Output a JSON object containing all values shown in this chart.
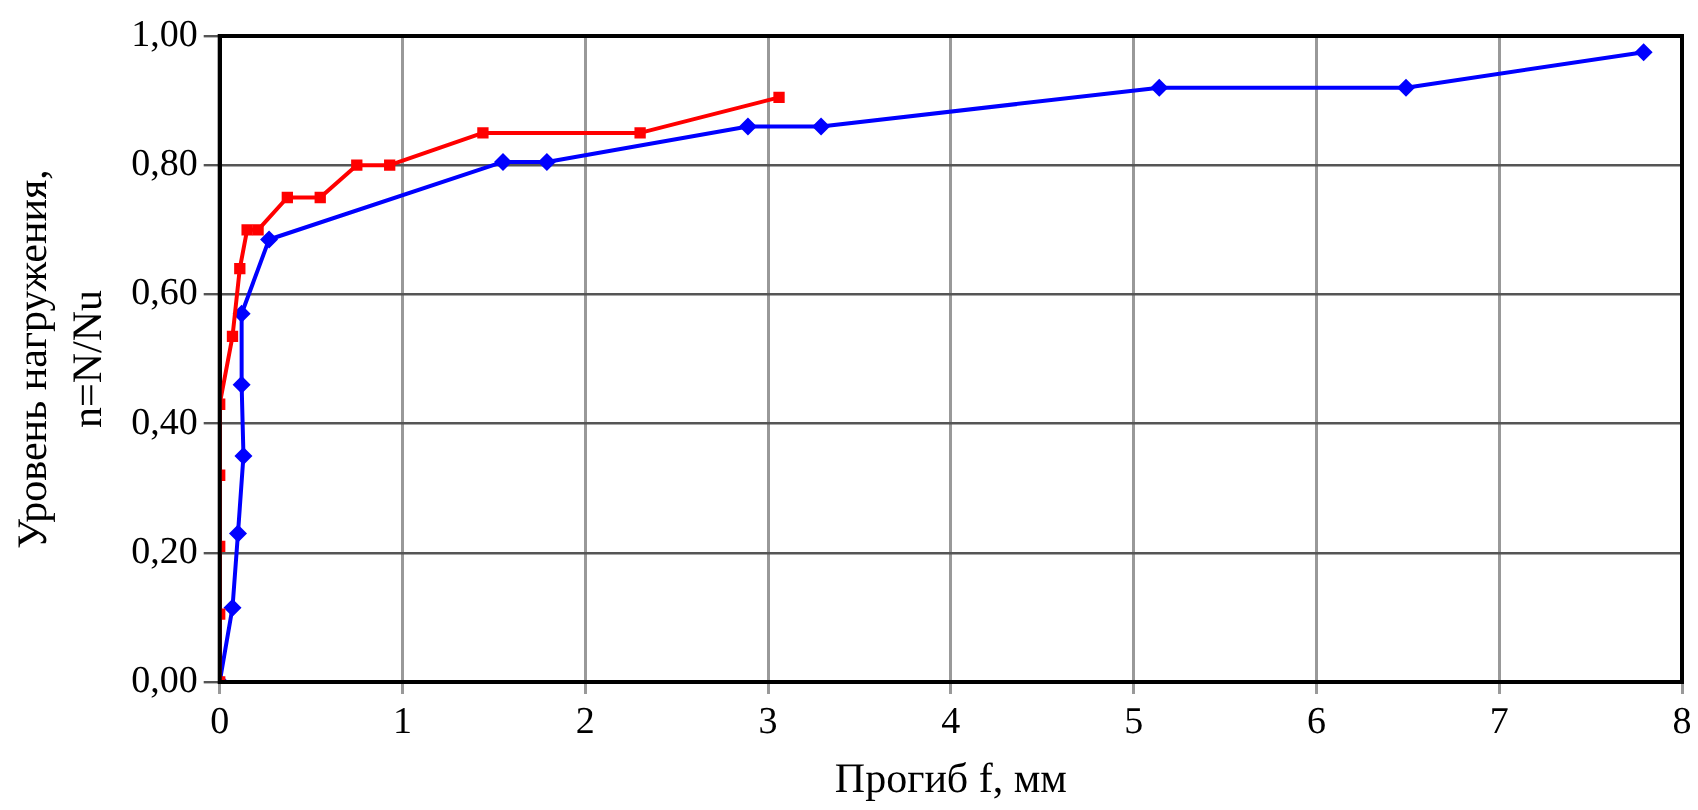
{
  "chart_data": {
    "type": "line",
    "xlabel": "Прогиб f, мм",
    "ylabel": "Уровень нагружения,\nn=N/Nu",
    "xlim": [
      0,
      8
    ],
    "xticks": [
      0,
      1,
      2,
      3,
      4,
      5,
      6,
      7,
      8
    ],
    "ylim": [
      0,
      1
    ],
    "yticks": [
      {
        "value": 0,
        "label": "0,00"
      },
      {
        "value": 0.2,
        "label": "0,20"
      },
      {
        "value": 0.4,
        "label": "0,40"
      },
      {
        "value": 0.6,
        "label": "0,60"
      },
      {
        "value": 0.8,
        "label": "0,80"
      },
      {
        "value": 1,
        "label": "1,00"
      }
    ],
    "grid": true,
    "legend": false,
    "line_style": "solid",
    "series": [
      {
        "color": "#ff0000",
        "marker": "square",
        "x": [
          0,
          0,
          0,
          0,
          0,
          0.07,
          0.11,
          0.15,
          0.21,
          0.37,
          0.55,
          0.75,
          0.93,
          1.44,
          2.3,
          3.06
        ],
        "values": [
          0,
          0.105,
          0.21,
          0.32,
          0.43,
          0.535,
          0.64,
          0.7,
          0.7,
          0.75,
          0.75,
          0.8,
          0.8,
          0.85,
          0.85,
          0.905
        ]
      },
      {
        "color": "#0000ff",
        "marker": "diamond",
        "x": [
          0,
          0.07,
          0.1,
          0.13,
          0.12,
          0.12,
          0.27,
          1.55,
          1.79,
          2.89,
          3.29,
          5.14,
          6.49,
          7.79
        ],
        "values": [
          0,
          0.115,
          0.23,
          0.35,
          0.46,
          0.57,
          0.685,
          0.805,
          0.805,
          0.86,
          0.86,
          0.92,
          0.92,
          0.975
        ]
      }
    ]
  }
}
